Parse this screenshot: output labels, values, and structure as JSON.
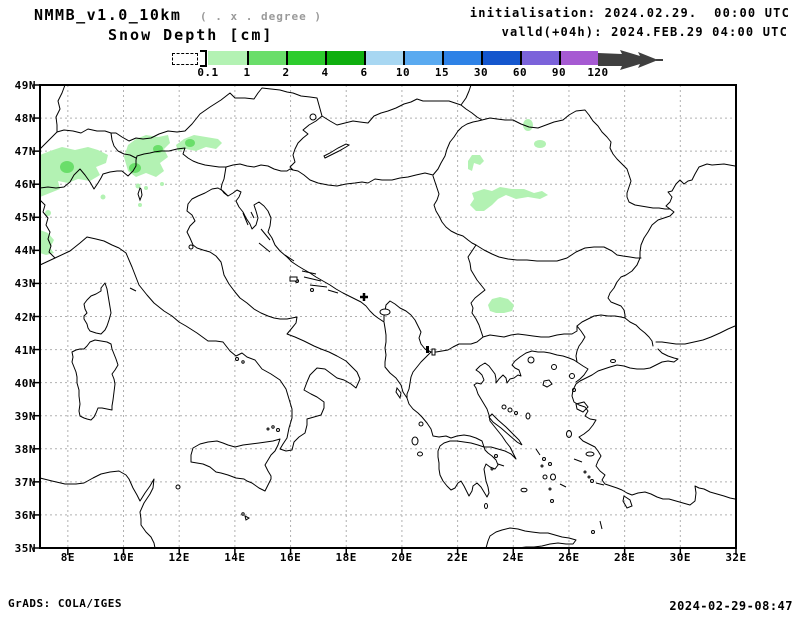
{
  "header": {
    "model_title": "NMMB_v1.0_10km",
    "model_note": "( . x . degree )",
    "field_title": "Snow Depth [cm]",
    "init_line": "initialisation: 2024.02.29.  00:00 UTC",
    "valid_line": "valld(+04h): 2024.FEB.29 04:00 UTC"
  },
  "footer": {
    "credit": "GrADS: COLA/IGES",
    "generated": "2024-02-29-08:47"
  },
  "colorbar": {
    "unit": "cm",
    "thresholds": [
      "0.1",
      "1",
      "2",
      "4",
      "6",
      "10",
      "15",
      "30",
      "60",
      "90",
      "120"
    ],
    "colors": [
      "#b3f2b3",
      "#6ade6a",
      "#2ecc2e",
      "#0faf0f",
      "#a8d7f2",
      "#5aaaf0",
      "#2e82e6",
      "#1456cd",
      "#7b63da",
      "#a65ad2"
    ],
    "overflow_color": "#3f3f3f",
    "below_min_style": "white-dashed-box"
  },
  "map": {
    "extent": {
      "lon_min": 7,
      "lon_max": 32,
      "lat_min": 35,
      "lat_max": 49
    },
    "lat_labels": [
      "49N",
      "48N",
      "47N",
      "46N",
      "45N",
      "44N",
      "43N",
      "42N",
      "41N",
      "40N",
      "39N",
      "38N",
      "37N",
      "36N",
      "35N"
    ],
    "lon_labels": [
      "8E",
      "10E",
      "12E",
      "14E",
      "16E",
      "18E",
      "20E",
      "22E",
      "24E",
      "26E",
      "28E",
      "30E",
      "32E"
    ],
    "grid_color": "#b0b0b0",
    "snow_light": "#b3f2b3",
    "snow_mid": "#6ade6a"
  },
  "chart_data": {
    "type": "filled-contour-map",
    "variable": "Snow Depth",
    "unit": "cm",
    "levels": [
      0.1,
      1,
      2,
      4,
      6,
      10,
      15,
      30,
      60,
      90,
      120
    ],
    "region": "Central Europe / Balkans / Italy / Greece (7E-32E, 35N-49N)",
    "snow_areas": [
      {
        "region": "Western Alps (Switzerland/NW Italy)",
        "approx_lon": "7-9.5E",
        "approx_lat": "45.5-47N",
        "value_cm": "0.1-2"
      },
      {
        "region": "Central Alps (Tyrol/Engadin)",
        "approx_lon": "9.9-11.7E",
        "approx_lat": "46-47.5N",
        "value_cm": "0.1-2"
      },
      {
        "region": "Eastern Alps (Tauern)",
        "approx_lon": "11.8-13.5E",
        "approx_lat": "46.9-47.4N",
        "value_cm": "0.1-2"
      },
      {
        "region": "SW Alps near left edge",
        "approx_lon": "7-7.8E",
        "approx_lat": "43.9-44.7N",
        "value_cm": "0.1-1"
      },
      {
        "region": "Northern Romania (Rodna)",
        "approx_lon": "24.4-24.7E",
        "approx_lat": "47.6-47.9N",
        "value_cm": "0.1-1"
      },
      {
        "region": "NE Carpathians spot",
        "approx_lon": "24.8-25.2E",
        "approx_lat": "47.1-47.4N",
        "value_cm": "0.1-1"
      },
      {
        "region": "Apuseni Mountains",
        "approx_lon": "23.4-23.9E",
        "approx_lat": "46.4-46.9N",
        "value_cm": "0.1-1"
      },
      {
        "region": "Southern Carpathians (Fagaras)",
        "approx_lon": "23.5-26.3E",
        "approx_lat": "45.1-45.9N",
        "value_cm": "0.1-1"
      },
      {
        "region": "SW Bulgaria (Rila)",
        "approx_lon": "23.1-24.1E",
        "approx_lat": "42.0-42.6N",
        "value_cm": "0.1-1"
      }
    ]
  }
}
